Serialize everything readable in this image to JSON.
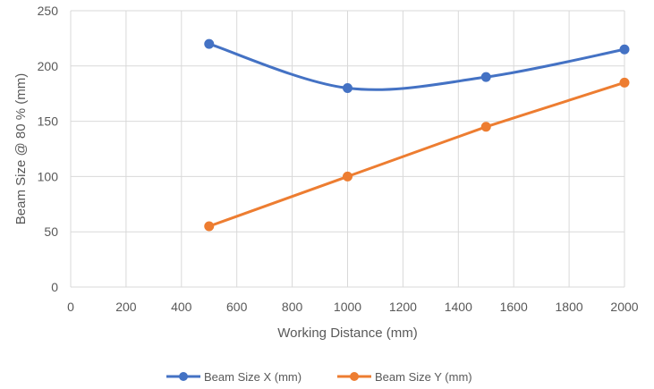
{
  "chart_data": {
    "type": "line",
    "title": "",
    "xlabel": "Working Distance (mm)",
    "ylabel": "Beam Size @ 80 % (mm)",
    "xlim": [
      0,
      2000
    ],
    "ylim": [
      0,
      250
    ],
    "xticks": [
      0,
      200,
      400,
      600,
      800,
      1000,
      1200,
      1400,
      1600,
      1800,
      2000
    ],
    "yticks": [
      0,
      50,
      100,
      150,
      200,
      250
    ],
    "grid": true,
    "legend_position": "bottom",
    "series": [
      {
        "name": "Beam Size X (mm)",
        "color": "#4472C4",
        "smooth": true,
        "x": [
          500,
          1000,
          1500,
          2000
        ],
        "y": [
          220,
          180,
          190,
          215
        ]
      },
      {
        "name": "Beam Size Y (mm)",
        "color": "#ED7D31",
        "smooth": false,
        "x": [
          500,
          1000,
          1500,
          2000
        ],
        "y": [
          55,
          100,
          145,
          185
        ]
      }
    ]
  }
}
